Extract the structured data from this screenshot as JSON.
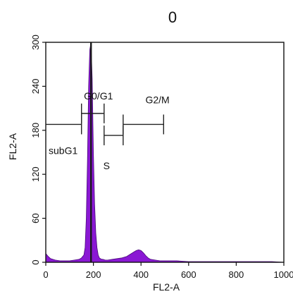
{
  "chart_data": {
    "type": "area",
    "title": "0",
    "xlabel": "FL2-A",
    "ylabel": "FL2-A",
    "xlim": [
      0,
      1000
    ],
    "ylim": [
      0,
      300
    ],
    "xticks": [
      "0",
      "200",
      "400",
      "600",
      "800",
      "1000"
    ],
    "yticks": [
      "0",
      "60",
      "120",
      "180",
      "240",
      "300"
    ],
    "grid": false,
    "fill_color": "#8a18d4",
    "series": [
      {
        "x": [
          0,
          10,
          20,
          40,
          60,
          80,
          100,
          120,
          140,
          150,
          160,
          165,
          170,
          175,
          180,
          185,
          190,
          195,
          200,
          205,
          210,
          215,
          220,
          225,
          230,
          235,
          240,
          250,
          260,
          280,
          300,
          320,
          340,
          350,
          360,
          370,
          380,
          390,
          400,
          410,
          420,
          430,
          440,
          460,
          480,
          500,
          550,
          600,
          650,
          700,
          750,
          800,
          850,
          900,
          950,
          1000
        ],
        "y": [
          12,
          8,
          5,
          3,
          2,
          2,
          2,
          3,
          4,
          6,
          10,
          20,
          60,
          140,
          240,
          290,
          300,
          250,
          150,
          80,
          40,
          20,
          10,
          6,
          5,
          4,
          4,
          3,
          3,
          4,
          5,
          6,
          8,
          10,
          12,
          14,
          16,
          17,
          16,
          13,
          9,
          6,
          4,
          3,
          2,
          2,
          2,
          1,
          1,
          1,
          1,
          1,
          1,
          1,
          1,
          0
        ]
      }
    ],
    "gates": [
      {
        "name": "subG1",
        "x_start": 0,
        "x_end": 150,
        "y": 188
      },
      {
        "name": "G0/G1",
        "x_start": 150,
        "x_end": 245,
        "y": 203
      },
      {
        "name": "S",
        "x_start": 245,
        "x_end": 325,
        "y": 173
      },
      {
        "name": "G2/M",
        "x_start": 325,
        "x_end": 495,
        "y": 188
      }
    ]
  }
}
